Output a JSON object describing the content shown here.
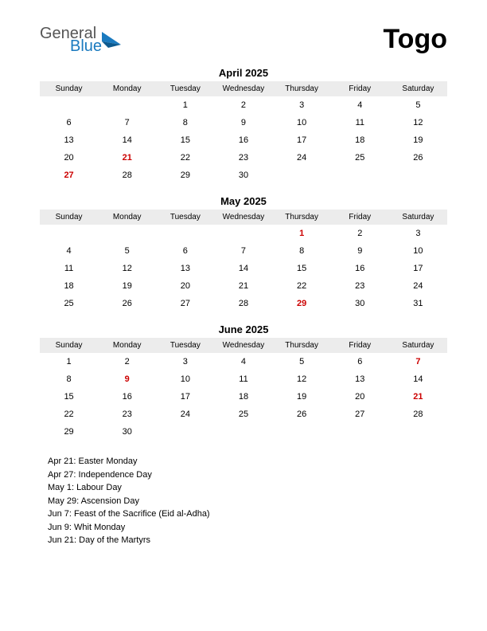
{
  "logo": {
    "general": "General",
    "blue": "Blue"
  },
  "country": "Togo",
  "day_headers": [
    "Sunday",
    "Monday",
    "Tuesday",
    "Wednesday",
    "Thursday",
    "Friday",
    "Saturday"
  ],
  "months": [
    {
      "title": "April 2025",
      "weeks": [
        [
          "",
          "",
          "1",
          "2",
          "3",
          "4",
          "5"
        ],
        [
          "6",
          "7",
          "8",
          "9",
          "10",
          "11",
          "12"
        ],
        [
          "13",
          "14",
          "15",
          "16",
          "17",
          "18",
          "19"
        ],
        [
          "20",
          "21",
          "22",
          "23",
          "24",
          "25",
          "26"
        ],
        [
          "27",
          "28",
          "29",
          "30",
          "",
          "",
          ""
        ]
      ],
      "holidays": [
        "21",
        "27"
      ]
    },
    {
      "title": "May 2025",
      "weeks": [
        [
          "",
          "",
          "",
          "",
          "1",
          "2",
          "3"
        ],
        [
          "4",
          "5",
          "6",
          "7",
          "8",
          "9",
          "10"
        ],
        [
          "11",
          "12",
          "13",
          "14",
          "15",
          "16",
          "17"
        ],
        [
          "18",
          "19",
          "20",
          "21",
          "22",
          "23",
          "24"
        ],
        [
          "25",
          "26",
          "27",
          "28",
          "29",
          "30",
          "31"
        ]
      ],
      "holidays": [
        "1",
        "29"
      ]
    },
    {
      "title": "June 2025",
      "weeks": [
        [
          "1",
          "2",
          "3",
          "4",
          "5",
          "6",
          "7"
        ],
        [
          "8",
          "9",
          "10",
          "11",
          "12",
          "13",
          "14"
        ],
        [
          "15",
          "16",
          "17",
          "18",
          "19",
          "20",
          "21"
        ],
        [
          "22",
          "23",
          "24",
          "25",
          "26",
          "27",
          "28"
        ],
        [
          "29",
          "30",
          "",
          "",
          "",
          "",
          ""
        ]
      ],
      "holidays": [
        "7",
        "9",
        "21"
      ]
    }
  ],
  "holiday_list": [
    "Apr 21: Easter Monday",
    "Apr 27: Independence Day",
    "May 1: Labour Day",
    "May 29: Ascension Day",
    "Jun 7: Feast of the Sacrifice (Eid al-Adha)",
    "Jun 9: Whit Monday",
    "Jun 21: Day of the Martyrs"
  ],
  "colors": {
    "holiday": "#cc0000",
    "header_bg": "#ececec",
    "logo_blue": "#1a7abf",
    "logo_gray": "#555555"
  }
}
